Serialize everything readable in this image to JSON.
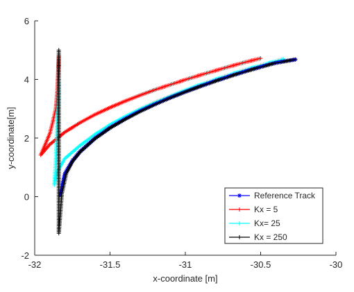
{
  "chart_data": {
    "type": "line",
    "title": "",
    "xlabel": "x-coordinate [m]",
    "ylabel": "y-coordinate[m]",
    "xlim": [
      -32,
      -30
    ],
    "ylim": [
      -2,
      6
    ],
    "xticks": [
      -32,
      -31.5,
      -31,
      -30.5,
      -30
    ],
    "xtick_labels": [
      "-32",
      "-31.5",
      "-31",
      "-30.5",
      "-30"
    ],
    "yticks": [
      -2,
      0,
      2,
      4,
      6
    ],
    "ytick_labels": [
      "-2",
      "0",
      "2",
      "4",
      "6"
    ],
    "grid": false,
    "legend_position": "bottom-right",
    "series": [
      {
        "name": "Reference Track",
        "color": "#0000ff",
        "marker": "star",
        "x": [
          -31.83,
          -31.8,
          -31.75,
          -31.7,
          -31.6,
          -31.5,
          -31.4,
          -31.3,
          -31.2,
          -31.1,
          -31.0,
          -30.9,
          -30.8,
          -30.7,
          -30.6,
          -30.5,
          -30.4,
          -30.27
        ],
        "y": [
          0.05,
          0.78,
          1.22,
          1.53,
          1.99,
          2.35,
          2.65,
          2.92,
          3.16,
          3.38,
          3.58,
          3.77,
          3.95,
          4.12,
          4.28,
          4.43,
          4.57,
          4.68
        ]
      },
      {
        "name": "Kx = 5",
        "color": "#ff0000",
        "marker": "plus",
        "x": [
          -31.84,
          -31.845,
          -31.85,
          -31.86,
          -31.88,
          -31.9,
          -31.93,
          -31.96,
          -31.9,
          -31.8,
          -31.7,
          -31.6,
          -31.5,
          -31.4,
          -31.3,
          -31.2,
          -31.1,
          -31.0,
          -30.9,
          -30.8,
          -30.7,
          -30.6,
          -30.5
        ],
        "y": [
          4.8,
          4.2,
          3.6,
          3.0,
          2.55,
          2.15,
          1.78,
          1.42,
          1.78,
          2.2,
          2.52,
          2.8,
          3.04,
          3.26,
          3.46,
          3.65,
          3.82,
          3.99,
          4.15,
          4.3,
          4.45,
          4.59,
          4.72
        ]
      },
      {
        "name": "Kx= 25",
        "color": "#00ffff",
        "marker": "plus",
        "x": [
          -31.84,
          -31.86,
          -31.87,
          -31.85,
          -31.8,
          -31.7,
          -31.6,
          -31.5,
          -31.4,
          -31.3,
          -31.2,
          -31.1,
          -31.0,
          -30.9,
          -30.8,
          -30.7,
          -30.6,
          -30.5,
          -30.4,
          -30.35
        ],
        "y": [
          3.9,
          1.2,
          0.4,
          0.85,
          1.3,
          1.74,
          2.12,
          2.45,
          2.73,
          2.99,
          3.22,
          3.43,
          3.63,
          3.82,
          4.0,
          4.17,
          4.33,
          4.48,
          4.62,
          4.7
        ]
      },
      {
        "name": "Kx = 250",
        "color": "#000000",
        "marker": "plus",
        "x": [
          -31.84,
          -31.84,
          -31.84,
          -31.82,
          -31.79,
          -31.75,
          -31.7,
          -31.6,
          -31.5,
          -31.4,
          -31.3,
          -31.2,
          -31.1,
          -31.0,
          -30.9,
          -30.8,
          -30.7,
          -30.6,
          -30.5,
          -30.4,
          -30.27
        ],
        "y": [
          5.0,
          3.0,
          -1.25,
          0.1,
          0.8,
          1.2,
          1.52,
          1.98,
          2.34,
          2.64,
          2.91,
          3.15,
          3.37,
          3.57,
          3.76,
          3.94,
          4.11,
          4.27,
          4.42,
          4.56,
          4.68
        ]
      }
    ]
  }
}
